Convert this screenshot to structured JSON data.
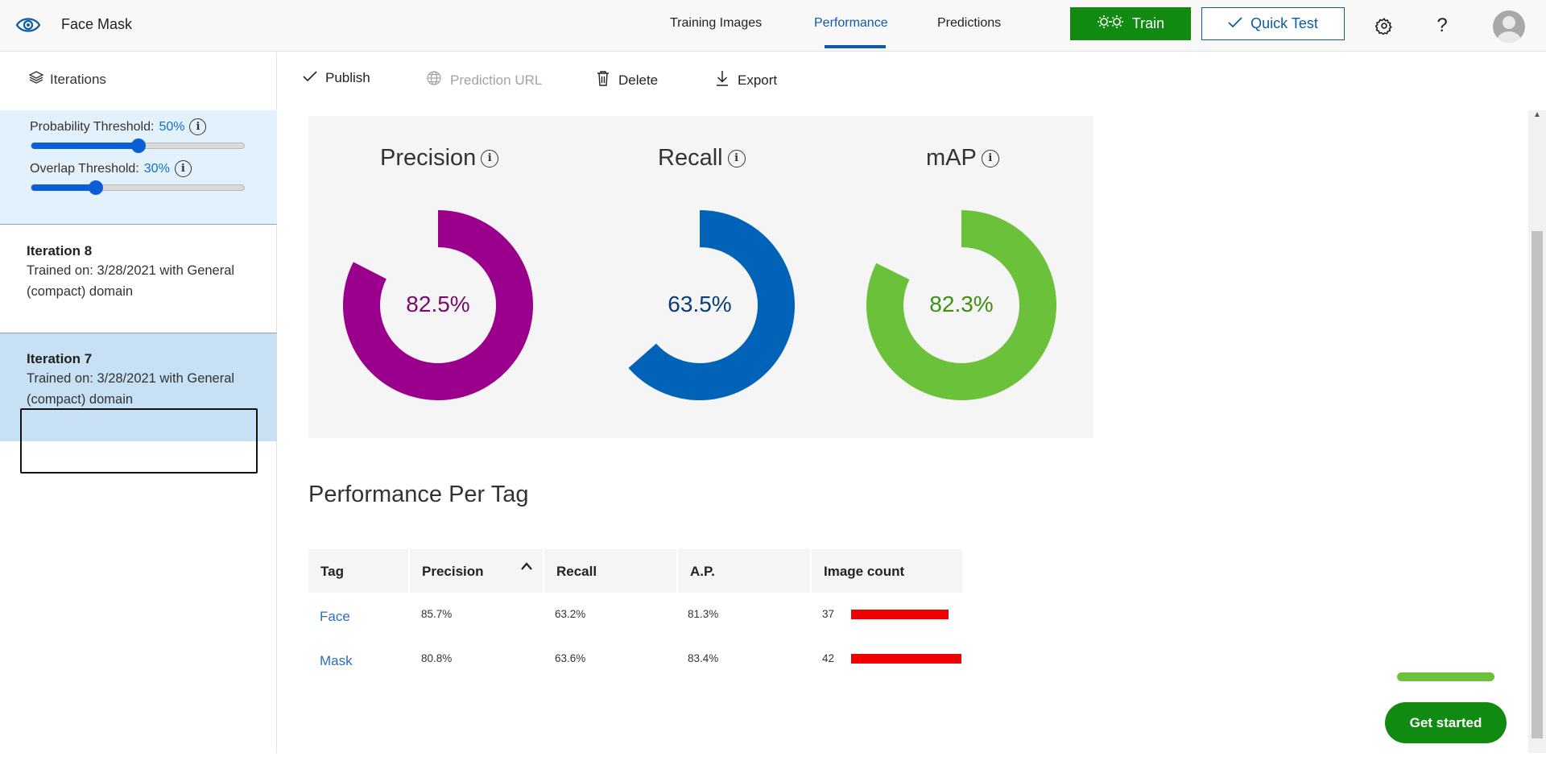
{
  "header": {
    "project_name": "Face Mask",
    "nav": [
      {
        "label": "Training Images",
        "active": false
      },
      {
        "label": "Performance",
        "active": true
      },
      {
        "label": "Predictions",
        "active": false
      }
    ],
    "train_label": "Train",
    "quick_test_label": "Quick Test",
    "help_label": "?",
    "icons": {
      "logo": "eye-icon",
      "train": "gears-icon",
      "quick_test": "check-icon",
      "settings": "gear-icon",
      "avatar": "user-avatar-icon"
    },
    "colors": {
      "accent": "#0e5aa7",
      "train_bg": "#108a10"
    }
  },
  "sidebar": {
    "iterations_label": "Iterations",
    "probability_threshold": {
      "label": "Probability Threshold:",
      "value_text": "50%",
      "value": 0.5
    },
    "overlap_threshold": {
      "label": "Overlap Threshold:",
      "value_text": "30%",
      "value": 0.3
    },
    "iterations": [
      {
        "title": "Iteration 8",
        "desc": "Trained on: 3/28/2021 with General (compact) domain",
        "selected": false
      },
      {
        "title": "Iteration 7",
        "desc": "Trained on: 3/28/2021 with General (compact) domain",
        "selected": true
      }
    ]
  },
  "toolbar": {
    "publish": "Publish",
    "prediction_url": "Prediction URL",
    "delete": "Delete",
    "export": "Export"
  },
  "metrics": [
    {
      "title": "Precision",
      "value_text": "82.5%",
      "value": 0.825,
      "color": "#9b008c",
      "text_color": "#7a0a6d"
    },
    {
      "title": "Recall",
      "value_text": "63.5%",
      "value": 0.635,
      "color": "#0063b8",
      "text_color": "#0b3d7a"
    },
    {
      "title": "mAP",
      "value_text": "82.3%",
      "value": 0.823,
      "color": "#6cc13a",
      "text_color": "#3e8f12"
    }
  ],
  "per_tag": {
    "title": "Performance Per Tag",
    "columns": [
      "Tag",
      "Precision",
      "Recall",
      "A.P.",
      "Image count"
    ],
    "sort_indicator": "^",
    "rows": [
      {
        "tag": "Face",
        "precision": "85.7%",
        "recall": "63.2%",
        "ap": "81.3%",
        "count": "37",
        "count_value": 37
      },
      {
        "tag": "Mask",
        "precision": "80.8%",
        "recall": "63.6%",
        "ap": "83.4%",
        "count": "42",
        "count_value": 42
      }
    ],
    "bar_color": "#f00000"
  },
  "get_started": {
    "label": "Get started",
    "progress": 1.0
  }
}
